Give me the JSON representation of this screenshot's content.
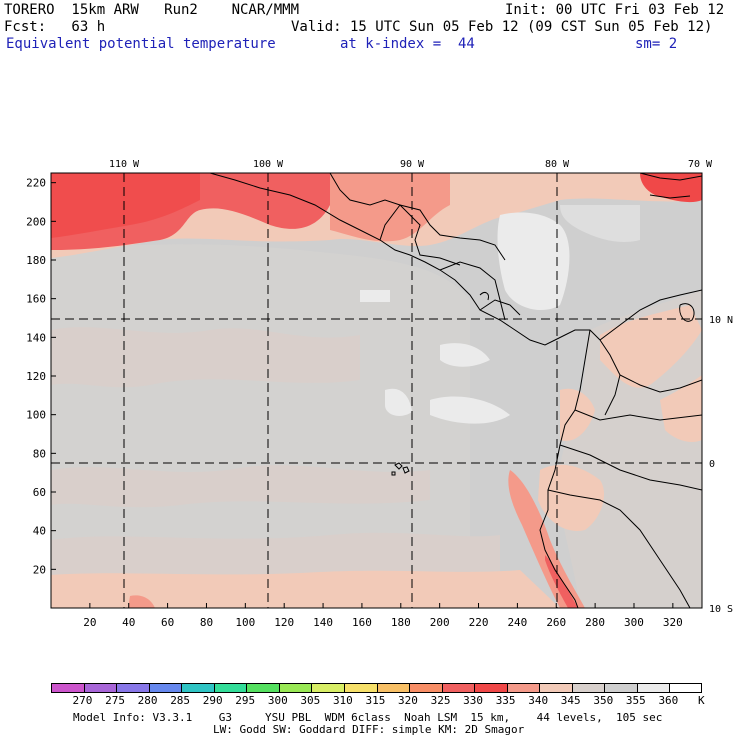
{
  "header": {
    "line1_left": "TORERO  15km ARW   Run2    NCAR/MMM",
    "line1_right": "Init: 00 UTC Fri 03 Feb 12",
    "line2_left": "Fcst:   63 h",
    "line2_right": "Valid: 15 UTC Sun 05 Feb 12 (09 CST Sun 05 Feb 12)",
    "line3_field": "Equivalent potential temperature",
    "line3_level": "at k-index =  44",
    "line3_smooth": "sm= 2"
  },
  "map": {
    "lon_labels": [
      "110 W",
      "100 W",
      "90 W",
      "80 W",
      "70 W"
    ],
    "lat_labels": [
      "10 N",
      "0",
      "10 S"
    ],
    "x_ticks": [
      "20",
      "40",
      "60",
      "80",
      "100",
      "120",
      "140",
      "160",
      "180",
      "200",
      "220",
      "240",
      "260",
      "280",
      "300",
      "320"
    ],
    "y_ticks": [
      "220",
      "200",
      "180",
      "160",
      "140",
      "120",
      "100",
      "80",
      "60",
      "40",
      "20"
    ]
  },
  "colorbar": {
    "levels": [
      "270",
      "275",
      "280",
      "285",
      "290",
      "295",
      "300",
      "305",
      "310",
      "315",
      "320",
      "325",
      "330",
      "335",
      "340",
      "345",
      "350",
      "355",
      "360"
    ],
    "unit": "K",
    "colors": [
      "#cc55cc",
      "#a866d8",
      "#8877e8",
      "#6688ee",
      "#2fc4c4",
      "#33dd99",
      "#55e060",
      "#99e855",
      "#d8ee66",
      "#f6e06a",
      "#f8c066",
      "#f88e66",
      "#f06060",
      "#f04848",
      "#f49a8a",
      "#f2cab8",
      "#d8d0cc",
      "#cfcfcf",
      "#ebebeb",
      "#ffffff"
    ]
  },
  "footer": {
    "line1": "Model Info: V3.3.1    G3     YSU PBL  WDM 6class  Noah LSM  15 km,    44 levels,  105 sec",
    "line2": "LW: Godd SW: Goddard DIFF: simple KM: 2D Smagor"
  }
}
